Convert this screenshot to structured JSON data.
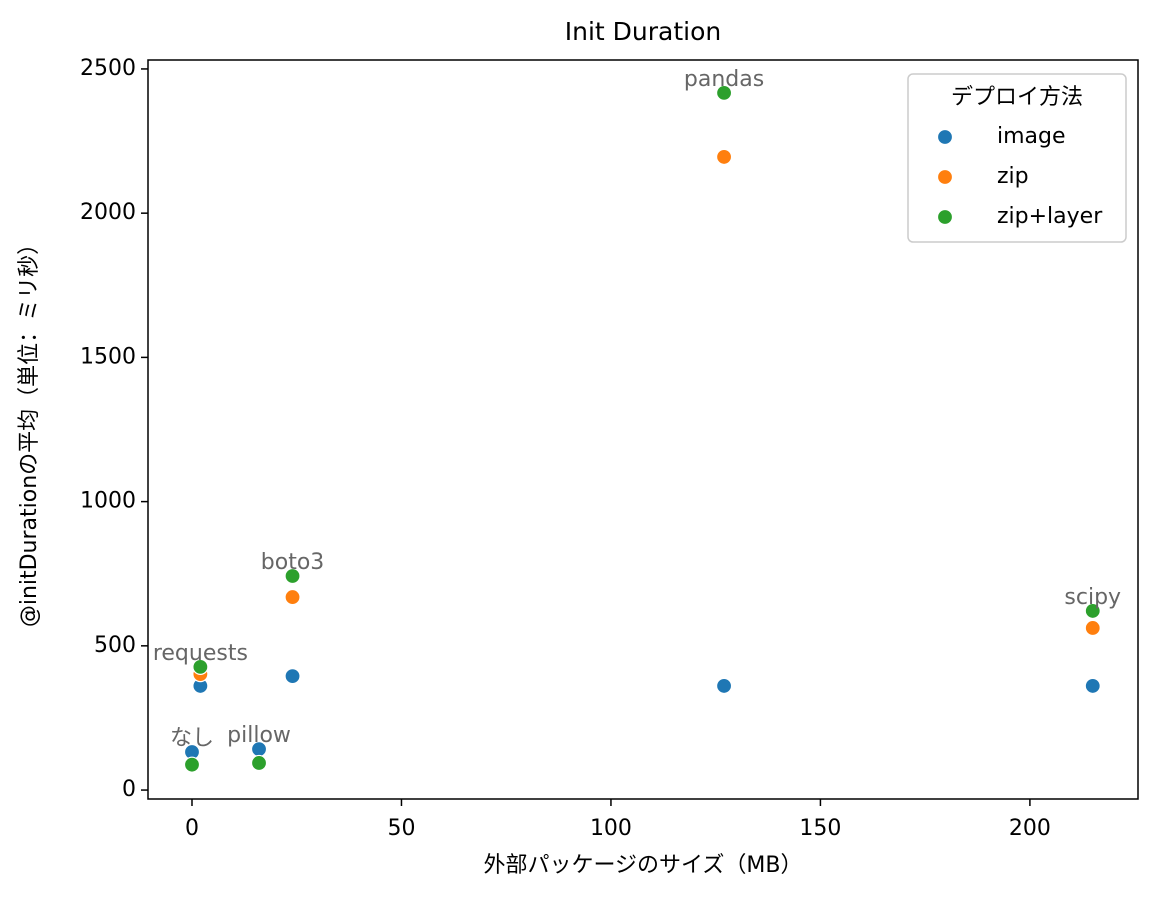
{
  "chart_data": {
    "type": "scatter",
    "title": "Init Duration",
    "x_label": "外部パッケージのサイズ（MB）",
    "y_label": "@initDurationの平均（単位：ミリ秒）",
    "x": [
      0,
      16,
      2,
      24,
      127,
      215
    ],
    "series": [
      {
        "name": "image",
        "color": "#1f77b4",
        "values": [
          132,
          142,
          361,
          395,
          361,
          361
        ]
      },
      {
        "name": "zip",
        "color": "#ff7f0e",
        "values": [
          87,
          92,
          402,
          669,
          2195,
          562
        ]
      },
      {
        "name": "zip+layer",
        "color": "#2ca02c",
        "values": [
          88,
          94,
          427,
          742,
          2417,
          621
        ]
      }
    ],
    "annotations": [
      {
        "text": "なし",
        "x": 0,
        "y": 132
      },
      {
        "text": "pillow",
        "x": 16,
        "y": 142
      },
      {
        "text": "requests",
        "x": 2,
        "y": 427
      },
      {
        "text": "boto3",
        "x": 24,
        "y": 742
      },
      {
        "text": "pandas",
        "x": 127,
        "y": 2417
      },
      {
        "text": "scipy",
        "x": 215,
        "y": 621
      }
    ],
    "legend_title": "デプロイ方法",
    "legend": "upper right",
    "xlim": [
      -10.5,
      225.8
    ],
    "ylim": [
      -31,
      2531
    ],
    "xticks": [
      0,
      50,
      100,
      150,
      200
    ],
    "yticks": [
      0,
      500,
      1000,
      1500,
      2000,
      2500
    ]
  }
}
